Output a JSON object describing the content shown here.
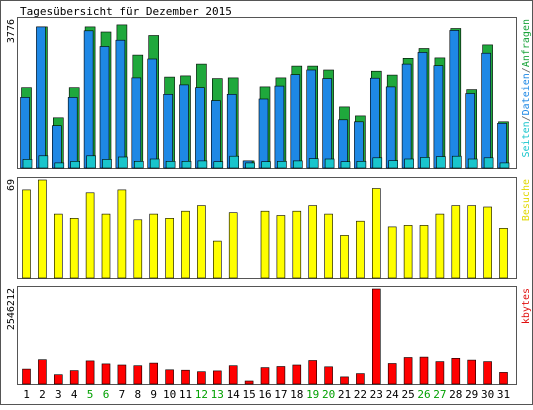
{
  "chart_data": {
    "type": "bar",
    "title": "Tagesübersicht für Dezember 2015",
    "categories": [
      "1",
      "2",
      "3",
      "4",
      "5",
      "6",
      "7",
      "8",
      "9",
      "10",
      "11",
      "12",
      "13",
      "14",
      "15",
      "16",
      "17",
      "18",
      "19",
      "20",
      "21",
      "22",
      "23",
      "24",
      "25",
      "26",
      "27",
      "28",
      "29",
      "30",
      "31"
    ],
    "weekend_days": [
      "5",
      "6",
      "12",
      "13",
      "19",
      "20",
      "26",
      "27"
    ],
    "panels": [
      {
        "name": "top",
        "ymax_label": "3776",
        "ymax": 3776,
        "legend_parts": [
          {
            "text": "Seiten",
            "color": "#19c5cc"
          },
          {
            "text": "/",
            "color": "#606060"
          },
          {
            "text": "Dateien",
            "color": "#1e88e5"
          },
          {
            "text": "/",
            "color": "#606060"
          },
          {
            "text": "Anfragen",
            "color": "#1aa33a"
          }
        ],
        "series": [
          {
            "name": "Anfragen",
            "color": "#1fa83c",
            "values": [
              2050,
              3600,
              1280,
              2050,
              3600,
              3470,
              3650,
              2880,
              3380,
              2320,
              2350,
              2650,
              2280,
              2300,
              180,
              2070,
              2300,
              2600,
              2600,
              2500,
              1560,
              1330,
              2470,
              2370,
              2800,
              3050,
              2810,
              3560,
              2000,
              3140,
              1180
            ]
          },
          {
            "name": "Dateien",
            "color": "#1e88e5",
            "values": [
              1800,
              3600,
              1080,
              1800,
              3500,
              3100,
              3260,
              2300,
              2780,
              1880,
              2120,
              2050,
              1720,
              1880,
              180,
              1760,
              2090,
              2380,
              2500,
              2280,
              1230,
              1180,
              2290,
              2070,
              2650,
              2950,
              2610,
              3510,
              1900,
              2930,
              1140
            ]
          },
          {
            "name": "Seiten",
            "color": "#19c5cc",
            "values": [
              220,
              310,
              130,
              170,
              310,
              220,
              280,
              170,
              230,
              170,
              170,
              180,
              160,
              300,
              130,
              160,
              170,
              180,
              240,
              230,
              160,
              170,
              260,
              190,
              230,
              270,
              290,
              300,
              230,
              260,
              130
            ]
          }
        ]
      },
      {
        "name": "middle",
        "ymax_label": "69",
        "ymax": 69,
        "legend_parts": [
          {
            "text": "Besuche",
            "color": "#e0d800"
          }
        ],
        "series": [
          {
            "name": "Besuche",
            "color": "#ffff00",
            "values": [
              62,
              69,
              45,
              42,
              60,
              45,
              62,
              41,
              45,
              42,
              47,
              51,
              26,
              46,
              0,
              47,
              44,
              47,
              51,
              45,
              30,
              40,
              63,
              36,
              37,
              37,
              45,
              51,
              51,
              50,
              35
            ]
          }
        ]
      },
      {
        "name": "bottom",
        "ymax_label": "2546212",
        "ymax": 2546212,
        "legend_parts": [
          {
            "text": "kbytes",
            "color": "#e01010"
          }
        ],
        "series": [
          {
            "name": "kbytes",
            "color": "#ff0000",
            "values": [
              400000,
              650000,
              250000,
              360000,
              620000,
              540000,
              510000,
              490000,
              560000,
              380000,
              370000,
              330000,
              350000,
              490000,
              80000,
              440000,
              470000,
              510000,
              630000,
              460000,
              190000,
              280000,
              2546212,
              550000,
              710000,
              720000,
              600000,
              690000,
              640000,
              600000,
              310000
            ]
          }
        ]
      }
    ]
  },
  "colors": {
    "frame": "#555555",
    "background": "#ffffff",
    "text": "#000000",
    "weekend_label": "#00a000",
    "bar_outline": "#000000"
  }
}
